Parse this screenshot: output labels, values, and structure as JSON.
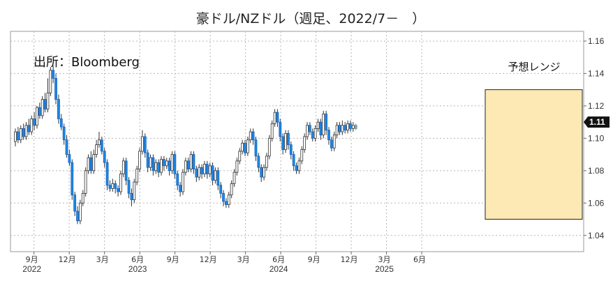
{
  "chart_data": {
    "type": "candlestick",
    "title": "豪ドル/NZドル（週足、2022/7－　）",
    "source": "出所：Bloomberg",
    "range_label": "予想レンジ",
    "range_band": [
      1.05,
      1.13
    ],
    "y_ticks": [
      "1.16",
      "1.14",
      "1.12",
      "1.10",
      "1.08",
      "1.06",
      "1.04"
    ],
    "ylim": [
      1.03,
      1.166
    ],
    "last_price_label": "1.11",
    "x_month_ticks": [
      {
        "label": "9月",
        "date": "2022-09"
      },
      {
        "label": "12月",
        "date": "2022-12"
      },
      {
        "label": "3月",
        "date": "2023-03"
      },
      {
        "label": "6月",
        "date": "2023-06"
      },
      {
        "label": "9月",
        "date": "2023-09"
      },
      {
        "label": "12月",
        "date": "2023-12"
      },
      {
        "label": "3月",
        "date": "2024-03"
      },
      {
        "label": "6月",
        "date": "2024-06"
      },
      {
        "label": "9月",
        "date": "2024-09"
      },
      {
        "label": "12月",
        "date": "2024-12"
      },
      {
        "label": "3月",
        "date": "2025-03"
      },
      {
        "label": "6月",
        "date": "2025-06"
      }
    ],
    "x_year_labels": [
      {
        "label": "2022",
        "date": "2022-09"
      },
      {
        "label": "2023",
        "date": "2023-06"
      },
      {
        "label": "2024",
        "date": "2024-06"
      },
      {
        "label": "2025",
        "date": "2025-03"
      }
    ],
    "colors": {
      "up": "#ffffff",
      "down": "#1e88e5",
      "forecast_up": "#cfe3ec",
      "forecast_down": "#7fa9bd",
      "band_fill": "#fce9b3",
      "band_stroke": "#222222",
      "last_label_bg": "#111111"
    },
    "forecast_from_week": 126,
    "candles": [
      [
        1.098,
        1.104,
        1.095,
        1.106
      ],
      [
        1.104,
        1.099,
        1.097,
        1.107
      ],
      [
        1.099,
        1.106,
        1.097,
        1.108
      ],
      [
        1.106,
        1.101,
        1.099,
        1.109
      ],
      [
        1.101,
        1.108,
        1.099,
        1.11
      ],
      [
        1.108,
        1.104,
        1.102,
        1.112
      ],
      [
        1.104,
        1.112,
        1.102,
        1.114
      ],
      [
        1.112,
        1.108,
        1.105,
        1.116
      ],
      [
        1.108,
        1.119,
        1.106,
        1.12
      ],
      [
        1.119,
        1.114,
        1.112,
        1.122
      ],
      [
        1.114,
        1.124,
        1.112,
        1.126
      ],
      [
        1.124,
        1.118,
        1.116,
        1.128
      ],
      [
        1.118,
        1.128,
        1.116,
        1.137
      ],
      [
        1.128,
        1.142,
        1.126,
        1.144
      ],
      [
        1.142,
        1.137,
        1.134,
        1.145
      ],
      [
        1.137,
        1.124,
        1.121,
        1.14
      ],
      [
        1.124,
        1.112,
        1.109,
        1.127
      ],
      [
        1.112,
        1.107,
        1.105,
        1.115
      ],
      [
        1.107,
        1.099,
        1.096,
        1.109
      ],
      [
        1.099,
        1.09,
        1.088,
        1.102
      ],
      [
        1.09,
        1.085,
        1.083,
        1.093
      ],
      [
        1.085,
        1.065,
        1.062,
        1.087
      ],
      [
        1.065,
        1.055,
        1.052,
        1.067
      ],
      [
        1.055,
        1.049,
        1.047,
        1.058
      ],
      [
        1.049,
        1.06,
        1.047,
        1.062
      ],
      [
        1.06,
        1.066,
        1.058,
        1.068
      ],
      [
        1.066,
        1.08,
        1.064,
        1.082
      ],
      [
        1.08,
        1.088,
        1.078,
        1.09
      ],
      [
        1.088,
        1.08,
        1.078,
        1.092
      ],
      [
        1.08,
        1.09,
        1.078,
        1.093
      ],
      [
        1.09,
        1.096,
        1.088,
        1.099
      ],
      [
        1.096,
        1.099,
        1.094,
        1.104
      ],
      [
        1.099,
        1.092,
        1.09,
        1.101
      ],
      [
        1.092,
        1.085,
        1.082,
        1.094
      ],
      [
        1.085,
        1.071,
        1.068,
        1.087
      ],
      [
        1.071,
        1.069,
        1.067,
        1.074
      ],
      [
        1.069,
        1.072,
        1.067,
        1.075
      ],
      [
        1.072,
        1.069,
        1.066,
        1.074
      ],
      [
        1.069,
        1.067,
        1.064,
        1.071
      ],
      [
        1.067,
        1.078,
        1.065,
        1.08
      ],
      [
        1.078,
        1.086,
        1.076,
        1.088
      ],
      [
        1.086,
        1.074,
        1.071,
        1.088
      ],
      [
        1.074,
        1.066,
        1.063,
        1.076
      ],
      [
        1.066,
        1.062,
        1.058,
        1.069
      ],
      [
        1.062,
        1.073,
        1.06,
        1.075
      ],
      [
        1.073,
        1.081,
        1.071,
        1.083
      ],
      [
        1.081,
        1.092,
        1.079,
        1.094
      ],
      [
        1.092,
        1.101,
        1.09,
        1.105
      ],
      [
        1.101,
        1.091,
        1.088,
        1.103
      ],
      [
        1.091,
        1.082,
        1.079,
        1.093
      ],
      [
        1.082,
        1.088,
        1.08,
        1.09
      ],
      [
        1.088,
        1.08,
        1.077,
        1.09
      ],
      [
        1.08,
        1.085,
        1.078,
        1.087
      ],
      [
        1.085,
        1.079,
        1.076,
        1.087
      ],
      [
        1.079,
        1.087,
        1.077,
        1.089
      ],
      [
        1.087,
        1.083,
        1.08,
        1.089
      ],
      [
        1.083,
        1.086,
        1.081,
        1.088
      ],
      [
        1.086,
        1.08,
        1.077,
        1.088
      ],
      [
        1.08,
        1.09,
        1.078,
        1.092
      ],
      [
        1.09,
        1.078,
        1.075,
        1.092
      ],
      [
        1.078,
        1.071,
        1.068,
        1.08
      ],
      [
        1.071,
        1.067,
        1.064,
        1.073
      ],
      [
        1.067,
        1.079,
        1.065,
        1.081
      ],
      [
        1.079,
        1.086,
        1.077,
        1.088
      ],
      [
        1.086,
        1.081,
        1.079,
        1.088
      ],
      [
        1.081,
        1.09,
        1.079,
        1.092
      ],
      [
        1.09,
        1.081,
        1.078,
        1.092
      ],
      [
        1.081,
        1.076,
        1.073,
        1.083
      ],
      [
        1.076,
        1.082,
        1.074,
        1.084
      ],
      [
        1.082,
        1.078,
        1.075,
        1.084
      ],
      [
        1.078,
        1.084,
        1.076,
        1.086
      ],
      [
        1.084,
        1.078,
        1.075,
        1.086
      ],
      [
        1.078,
        1.083,
        1.076,
        1.085
      ],
      [
        1.083,
        1.074,
        1.071,
        1.085
      ],
      [
        1.074,
        1.08,
        1.072,
        1.082
      ],
      [
        1.08,
        1.071,
        1.068,
        1.082
      ],
      [
        1.071,
        1.066,
        1.063,
        1.073
      ],
      [
        1.066,
        1.061,
        1.058,
        1.068
      ],
      [
        1.061,
        1.059,
        1.057,
        1.063
      ],
      [
        1.059,
        1.065,
        1.057,
        1.067
      ],
      [
        1.065,
        1.072,
        1.063,
        1.074
      ],
      [
        1.072,
        1.079,
        1.07,
        1.081
      ],
      [
        1.079,
        1.086,
        1.077,
        1.088
      ],
      [
        1.086,
        1.092,
        1.084,
        1.094
      ],
      [
        1.092,
        1.097,
        1.09,
        1.099
      ],
      [
        1.097,
        1.091,
        1.089,
        1.099
      ],
      [
        1.091,
        1.099,
        1.089,
        1.101
      ],
      [
        1.099,
        1.104,
        1.097,
        1.106
      ],
      [
        1.104,
        1.099,
        1.096,
        1.106
      ],
      [
        1.099,
        1.089,
        1.086,
        1.101
      ],
      [
        1.089,
        1.082,
        1.079,
        1.091
      ],
      [
        1.082,
        1.076,
        1.073,
        1.084
      ],
      [
        1.076,
        1.082,
        1.074,
        1.084
      ],
      [
        1.082,
        1.089,
        1.08,
        1.091
      ],
      [
        1.089,
        1.1,
        1.087,
        1.102
      ],
      [
        1.1,
        1.109,
        1.098,
        1.111
      ],
      [
        1.109,
        1.116,
        1.107,
        1.118
      ],
      [
        1.116,
        1.11,
        1.107,
        1.118
      ],
      [
        1.11,
        1.101,
        1.098,
        1.112
      ],
      [
        1.101,
        1.093,
        1.09,
        1.103
      ],
      [
        1.093,
        1.103,
        1.091,
        1.105
      ],
      [
        1.103,
        1.096,
        1.093,
        1.105
      ],
      [
        1.096,
        1.09,
        1.087,
        1.098
      ],
      [
        1.09,
        1.083,
        1.08,
        1.092
      ],
      [
        1.083,
        1.08,
        1.078,
        1.085
      ],
      [
        1.08,
        1.086,
        1.078,
        1.088
      ],
      [
        1.086,
        1.093,
        1.084,
        1.095
      ],
      [
        1.093,
        1.101,
        1.091,
        1.103
      ],
      [
        1.101,
        1.108,
        1.099,
        1.11
      ],
      [
        1.108,
        1.104,
        1.102,
        1.11
      ],
      [
        1.104,
        1.1,
        1.098,
        1.106
      ],
      [
        1.1,
        1.106,
        1.098,
        1.108
      ],
      [
        1.106,
        1.11,
        1.104,
        1.112
      ],
      [
        1.11,
        1.102,
        1.099,
        1.112
      ],
      [
        1.102,
        1.115,
        1.1,
        1.117
      ],
      [
        1.115,
        1.105,
        1.102,
        1.117
      ],
      [
        1.105,
        1.099,
        1.096,
        1.107
      ],
      [
        1.099,
        1.094,
        1.092,
        1.101
      ],
      [
        1.094,
        1.102,
        1.092,
        1.104
      ],
      [
        1.102,
        1.108,
        1.1,
        1.11
      ],
      [
        1.108,
        1.104,
        1.102,
        1.11
      ],
      [
        1.104,
        1.108,
        1.102,
        1.111
      ],
      [
        1.108,
        1.105,
        1.103,
        1.11
      ],
      [
        1.105,
        1.109,
        1.103,
        1.111
      ],
      [
        1.109,
        1.106,
        1.104,
        1.111
      ],
      [
        1.106,
        1.108,
        1.104,
        1.11
      ],
      [
        1.108,
        1.106,
        1.105,
        1.109
      ]
    ]
  }
}
